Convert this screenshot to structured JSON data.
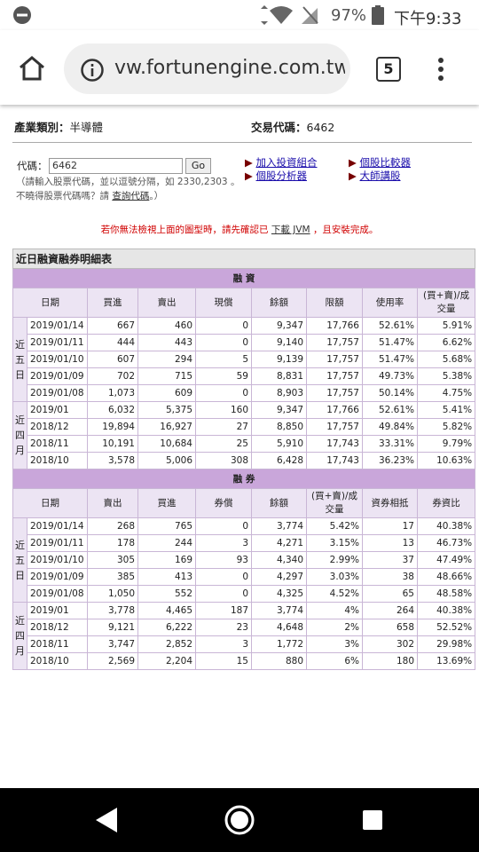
{
  "status_bar": {
    "battery": "97%",
    "time": "下午9:33"
  },
  "browser": {
    "url": "vw.fortunengine.com.tw",
    "tab_count": "5"
  },
  "page": {
    "industry_label": "產業類別：",
    "industry": "半導體",
    "code_label": "交易代碼：",
    "code": "6462",
    "search": {
      "label": "代碼：",
      "input": "6462",
      "button": "Go",
      "hint1": "（請輸入股票代碼，並以逗號分隔，如 2330,2303 。",
      "hint2": "不曉得股票代碼嗎？請",
      "hint_link": "查詢代碼",
      "hint_end": "。）"
    },
    "links": [
      "加入投資組合",
      "個股分析器",
      "個股比較器",
      "大師講股"
    ],
    "notice": {
      "before": "若你無法檢視上面的圖型時，請先確認已",
      "link": "下載 JVM",
      "after": "，且安裝完成。"
    }
  },
  "table": {
    "title": "近日融資融券明細表",
    "sections": [
      {
        "title": "融 資",
        "headers": [
          "日期",
          "買進",
          "賣出",
          "現償",
          "餘額",
          "限額",
          "使用率",
          "(買+賣)/成交量"
        ],
        "groups": [
          {
            "label": "近五日",
            "rows": [
              [
                "2019/01/14",
                "667",
                "460",
                "0",
                "9,347",
                "17,766",
                "52.61%",
                "5.91%"
              ],
              [
                "2019/01/11",
                "444",
                "443",
                "0",
                "9,140",
                "17,757",
                "51.47%",
                "6.62%"
              ],
              [
                "2019/01/10",
                "607",
                "294",
                "5",
                "9,139",
                "17,757",
                "51.47%",
                "5.68%"
              ],
              [
                "2019/01/09",
                "702",
                "715",
                "59",
                "8,831",
                "17,757",
                "49.73%",
                "5.38%"
              ],
              [
                "2019/01/08",
                "1,073",
                "609",
                "0",
                "8,903",
                "17,757",
                "50.14%",
                "4.75%"
              ]
            ]
          },
          {
            "label": "近四月",
            "rows": [
              [
                "2019/01",
                "6,032",
                "5,375",
                "160",
                "9,347",
                "17,766",
                "52.61%",
                "5.41%"
              ],
              [
                "2018/12",
                "19,894",
                "16,927",
                "27",
                "8,850",
                "17,757",
                "49.84%",
                "5.82%"
              ],
              [
                "2018/11",
                "10,191",
                "10,684",
                "25",
                "5,910",
                "17,743",
                "33.31%",
                "9.79%"
              ],
              [
                "2018/10",
                "3,578",
                "5,006",
                "308",
                "6,428",
                "17,743",
                "36.23%",
                "10.63%"
              ]
            ]
          }
        ]
      },
      {
        "title": "融 券",
        "headers": [
          "日期",
          "賣出",
          "買進",
          "券償",
          "餘額",
          "(買+賣)/成交量",
          "資券相抵",
          "券資比"
        ],
        "groups": [
          {
            "label": "近五日",
            "rows": [
              [
                "2019/01/14",
                "268",
                "765",
                "0",
                "3,774",
                "5.42%",
                "17",
                "40.38%"
              ],
              [
                "2019/01/11",
                "178",
                "244",
                "3",
                "4,271",
                "3.15%",
                "13",
                "46.73%"
              ],
              [
                "2019/01/10",
                "305",
                "169",
                "93",
                "4,340",
                "2.99%",
                "37",
                "47.49%"
              ],
              [
                "2019/01/09",
                "385",
                "413",
                "0",
                "4,297",
                "3.03%",
                "38",
                "48.66%"
              ],
              [
                "2019/01/08",
                "1,050",
                "552",
                "0",
                "4,325",
                "4.52%",
                "65",
                "48.58%"
              ]
            ]
          },
          {
            "label": "近四月",
            "rows": [
              [
                "2019/01",
                "3,778",
                "4,465",
                "187",
                "3,774",
                "4%",
                "264",
                "40.38%"
              ],
              [
                "2018/12",
                "9,121",
                "6,222",
                "23",
                "4,648",
                "2%",
                "658",
                "52.52%"
              ],
              [
                "2018/11",
                "3,747",
                "2,852",
                "3",
                "1,772",
                "3%",
                "302",
                "29.98%"
              ],
              [
                "2018/10",
                "2,569",
                "2,204",
                "15",
                "880",
                "6%",
                "180",
                "13.69%"
              ]
            ]
          }
        ]
      }
    ]
  }
}
